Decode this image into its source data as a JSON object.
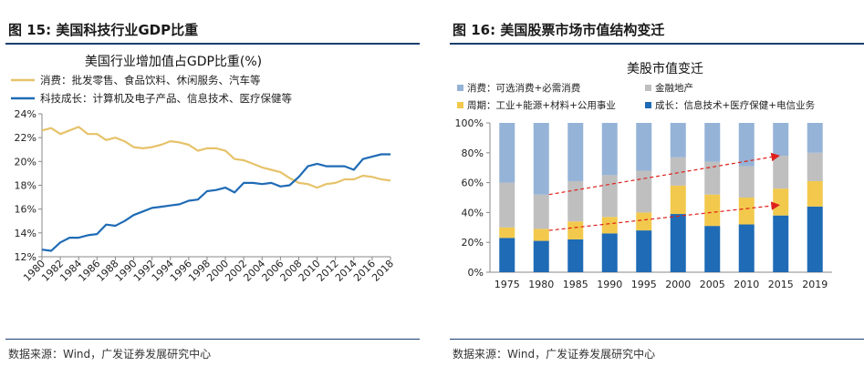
{
  "left": {
    "figure_title": "图 15: 美国科技行业GDP比重",
    "source": "数据来源：Wind，广发证券发展研究中心"
  },
  "right": {
    "figure_title": "图 16: 美国股票市场市值结构变迁",
    "source": "数据来源：Wind，广发证券发展研究中心"
  },
  "colors": {
    "consumer_line": "#E6C36A",
    "tech_line": "#1F6BB5",
    "consumer_bar": "#95B3D7",
    "finance_bar": "#BFBFBF",
    "cyclical_bar": "#F2C94C",
    "growth_bar": "#1F6BB5",
    "arrow": "#E0201B"
  },
  "chart_data": [
    {
      "type": "line",
      "title": "美国行业增加值占GDP比重(%)",
      "xlabel": "",
      "ylabel": "",
      "x": [
        1980,
        1981,
        1982,
        1983,
        1984,
        1985,
        1986,
        1987,
        1988,
        1989,
        1990,
        1991,
        1992,
        1993,
        1994,
        1995,
        1996,
        1997,
        1998,
        1999,
        2000,
        2001,
        2002,
        2003,
        2004,
        2005,
        2006,
        2007,
        2008,
        2009,
        2010,
        2011,
        2012,
        2013,
        2014,
        2015,
        2016,
        2017,
        2018
      ],
      "x_tick_labels": [
        "1980",
        "1982",
        "1984",
        "1986",
        "1988",
        "1990",
        "1992",
        "1994",
        "1996",
        "1998",
        "2000",
        "2002",
        "2004",
        "2006",
        "2008",
        "2010",
        "2012",
        "2014",
        "2016",
        "2018"
      ],
      "y_tick_labels": [
        "12%",
        "14%",
        "16%",
        "18%",
        "20%",
        "22%",
        "24%"
      ],
      "ylim": [
        12,
        24
      ],
      "legend_position": "top-left",
      "series": [
        {
          "name": "消费：批发零售、食品饮料、休闲服务、汽车等",
          "values": [
            22.6,
            22.8,
            22.3,
            22.6,
            22.9,
            22.3,
            22.3,
            21.8,
            22.0,
            21.7,
            21.2,
            21.1,
            21.2,
            21.4,
            21.7,
            21.6,
            21.4,
            20.9,
            21.1,
            21.1,
            20.9,
            20.2,
            20.1,
            19.8,
            19.5,
            19.3,
            19.1,
            18.6,
            18.2,
            18.1,
            17.8,
            18.1,
            18.2,
            18.5,
            18.5,
            18.8,
            18.7,
            18.5,
            18.4
          ]
        },
        {
          "name": "科技成长：计算机及电子产品、信息技术、医疗保健等",
          "values": [
            12.6,
            12.5,
            13.2,
            13.6,
            13.6,
            13.8,
            13.9,
            14.7,
            14.6,
            15.0,
            15.5,
            15.8,
            16.1,
            16.2,
            16.3,
            16.4,
            16.7,
            16.8,
            17.5,
            17.6,
            17.8,
            17.4,
            18.2,
            18.2,
            18.1,
            18.2,
            17.9,
            18.0,
            18.7,
            19.6,
            19.8,
            19.6,
            19.6,
            19.6,
            19.3,
            20.2,
            20.4,
            20.6,
            20.6
          ]
        }
      ]
    },
    {
      "type": "bar",
      "stacked": true,
      "title": "美股市值变迁",
      "categories": [
        "1975",
        "1980",
        "1985",
        "1990",
        "1995",
        "2000",
        "2005",
        "2010",
        "2015",
        "2019"
      ],
      "y_tick_labels": [
        "0%",
        "20%",
        "40%",
        "60%",
        "80%",
        "100%"
      ],
      "ylim": [
        0,
        100
      ],
      "legend_position": "top",
      "series": [
        {
          "name": "成长：信息技术+医疗保健+电信业务",
          "values": [
            23,
            21,
            22,
            26,
            28,
            39,
            31,
            32,
            38,
            44
          ]
        },
        {
          "name": "周期：工业+能源+材料+公用事业",
          "values": [
            7,
            8,
            12,
            11,
            12,
            19,
            21,
            18,
            18,
            17
          ]
        },
        {
          "name": "金融地产",
          "values": [
            30,
            23,
            27,
            28,
            28,
            19,
            22,
            21,
            22,
            19
          ]
        },
        {
          "name": "消费：可选消费+必需消费",
          "values": [
            40,
            48,
            39,
            35,
            32,
            23,
            26,
            29,
            22,
            20
          ]
        }
      ],
      "legend_order": [
        "消费：可选消费+必需消费",
        "金融地产",
        "周期：工业+能源+材料+公用事业",
        "成长：信息技术+医疗保健+电信业务"
      ],
      "annotations": [
        {
          "type": "dashed-arrow",
          "from": [
            "1980",
            52
          ],
          "to": [
            "2015",
            78
          ]
        },
        {
          "type": "dashed-arrow",
          "from": [
            "1980",
            28
          ],
          "to": [
            "2015",
            45
          ]
        }
      ]
    }
  ]
}
